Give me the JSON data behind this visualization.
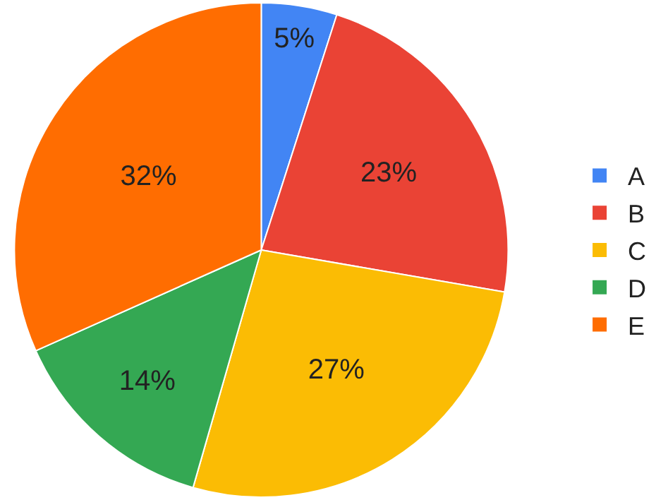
{
  "chart_data": {
    "type": "pie",
    "categories": [
      "A",
      "B",
      "C",
      "D",
      "E"
    ],
    "values": [
      5,
      23,
      27,
      14,
      32
    ],
    "value_labels": [
      "5%",
      "23%",
      "27%",
      "14%",
      "32%"
    ],
    "colors": [
      "#4285f4",
      "#ea4335",
      "#fbbc04",
      "#34a853",
      "#ff6d01"
    ],
    "legend": "right"
  }
}
